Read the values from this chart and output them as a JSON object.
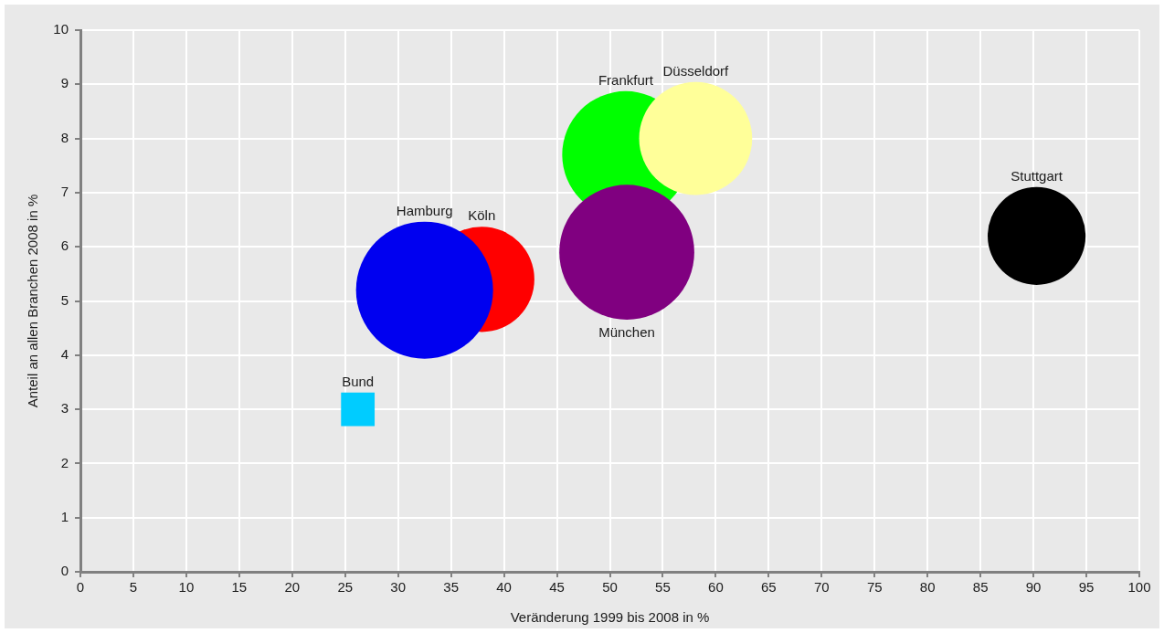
{
  "chart_data": {
    "type": "bubble",
    "xlabel": "Veränderung 1999 bis 2008 in %",
    "ylabel": "Anteil an allen Branchen 2008 in %",
    "xlim": [
      0,
      100
    ],
    "xticks": [
      0,
      5,
      10,
      15,
      20,
      25,
      30,
      35,
      40,
      45,
      50,
      55,
      60,
      65,
      70,
      75,
      80,
      85,
      90,
      95,
      100
    ],
    "ylim": [
      0,
      10
    ],
    "yticks": [
      0,
      1,
      2,
      3,
      4,
      5,
      6,
      7,
      8,
      9,
      10
    ],
    "grid": true,
    "marker": "circle",
    "series": [
      {
        "name": "Bund",
        "type": "scatter",
        "color": "#00ccff",
        "marker": "square",
        "x": [
          26.2
        ],
        "values": [
          3.0
        ]
      },
      {
        "name": "Köln",
        "color": "#ff0000",
        "x": [
          37.9
        ],
        "values": [
          5.4
        ],
        "sizes": [
          0.59
        ]
      },
      {
        "name": "Hamburg",
        "color": "#0000f0",
        "x": [
          32.5
        ],
        "values": [
          5.2
        ],
        "sizes": [
          1
        ]
      },
      {
        "name": "Frankfurt",
        "color": "#00ff00",
        "x": [
          51.5
        ],
        "values": [
          7.7
        ],
        "sizes": [
          0.86
        ]
      },
      {
        "name": "Düsseldorf",
        "color": "#ffff99",
        "x": [
          58.1
        ],
        "values": [
          8.0
        ],
        "sizes": [
          0.68
        ]
      },
      {
        "name": "München",
        "color": "#800080",
        "x": [
          51.6
        ],
        "values": [
          5.9
        ],
        "sizes": [
          0.97
        ]
      },
      {
        "name": "Stuttgart",
        "color": "#000000",
        "x": [
          90.3
        ],
        "values": [
          6.2
        ],
        "sizes": [
          0.51
        ]
      }
    ]
  }
}
